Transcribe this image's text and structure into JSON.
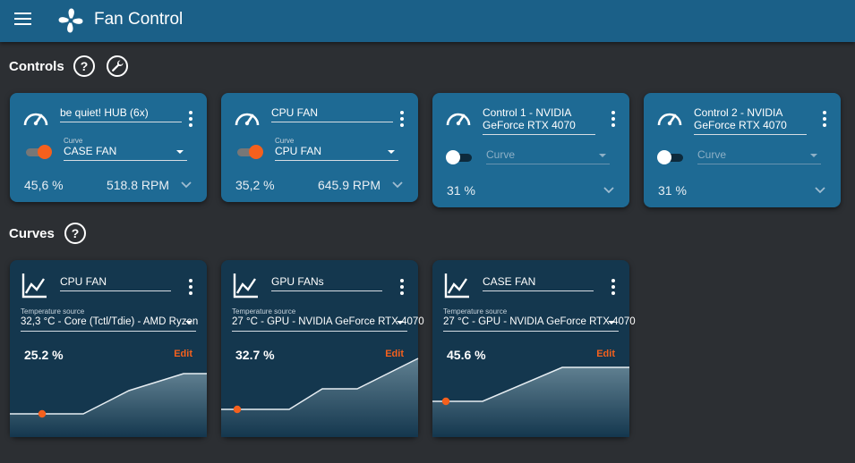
{
  "app": {
    "title": "Fan Control",
    "menu_icon": "hamburger-menu-icon",
    "logo_icon": "fan-logo-icon"
  },
  "colors": {
    "appbar": "#1b6088",
    "background": "#2c2f33",
    "control_card": "#1e6a94",
    "curve_card": "#14374e",
    "accent": "#f4601d"
  },
  "controls_section": {
    "title": "Controls",
    "help_icon": "help-circle-icon",
    "tool_icon": "wrench-icon",
    "cards": [
      {
        "name": "be quiet! HUB (6x)",
        "enabled": true,
        "curve_label": "Curve",
        "curve_value": "CASE FAN",
        "percent": "45,6 %",
        "rpm": "518.8 RPM"
      },
      {
        "name": "CPU FAN",
        "enabled": true,
        "curve_label": "Curve",
        "curve_value": "CPU FAN",
        "percent": "35,2 %",
        "rpm": "645.9 RPM"
      },
      {
        "name": "Control 1 - NVIDIA GeForce RTX 4070",
        "enabled": false,
        "curve_label": "",
        "curve_value": "Curve",
        "percent": "31 %",
        "rpm": ""
      },
      {
        "name": "Control 2 - NVIDIA GeForce RTX 4070",
        "enabled": false,
        "curve_label": "",
        "curve_value": "Curve",
        "percent": "31 %",
        "rpm": ""
      }
    ]
  },
  "curves_section": {
    "title": "Curves",
    "help_icon": "help-circle-icon",
    "cards": [
      {
        "name": "CPU FAN",
        "temp_label": "Temperature source",
        "temp_value": "32,3 °C - Core (Tctl/Tdie) - AMD Ryzen",
        "percent": "25.2 %",
        "edit_label": "Edit",
        "current_output_percent": 25.2
      },
      {
        "name": "GPU FANs",
        "temp_label": "Temperature source",
        "temp_value": "27 °C - GPU - NVIDIA GeForce RTX 4070",
        "percent": "32.7 %",
        "edit_label": "Edit",
        "current_output_percent": 32.7
      },
      {
        "name": "CASE FAN",
        "temp_label": "Temperature source",
        "temp_value": "27 °C - GPU - NVIDIA GeForce RTX 4070",
        "percent": "45.6 %",
        "edit_label": "Edit",
        "current_output_percent": 45.6
      }
    ]
  }
}
